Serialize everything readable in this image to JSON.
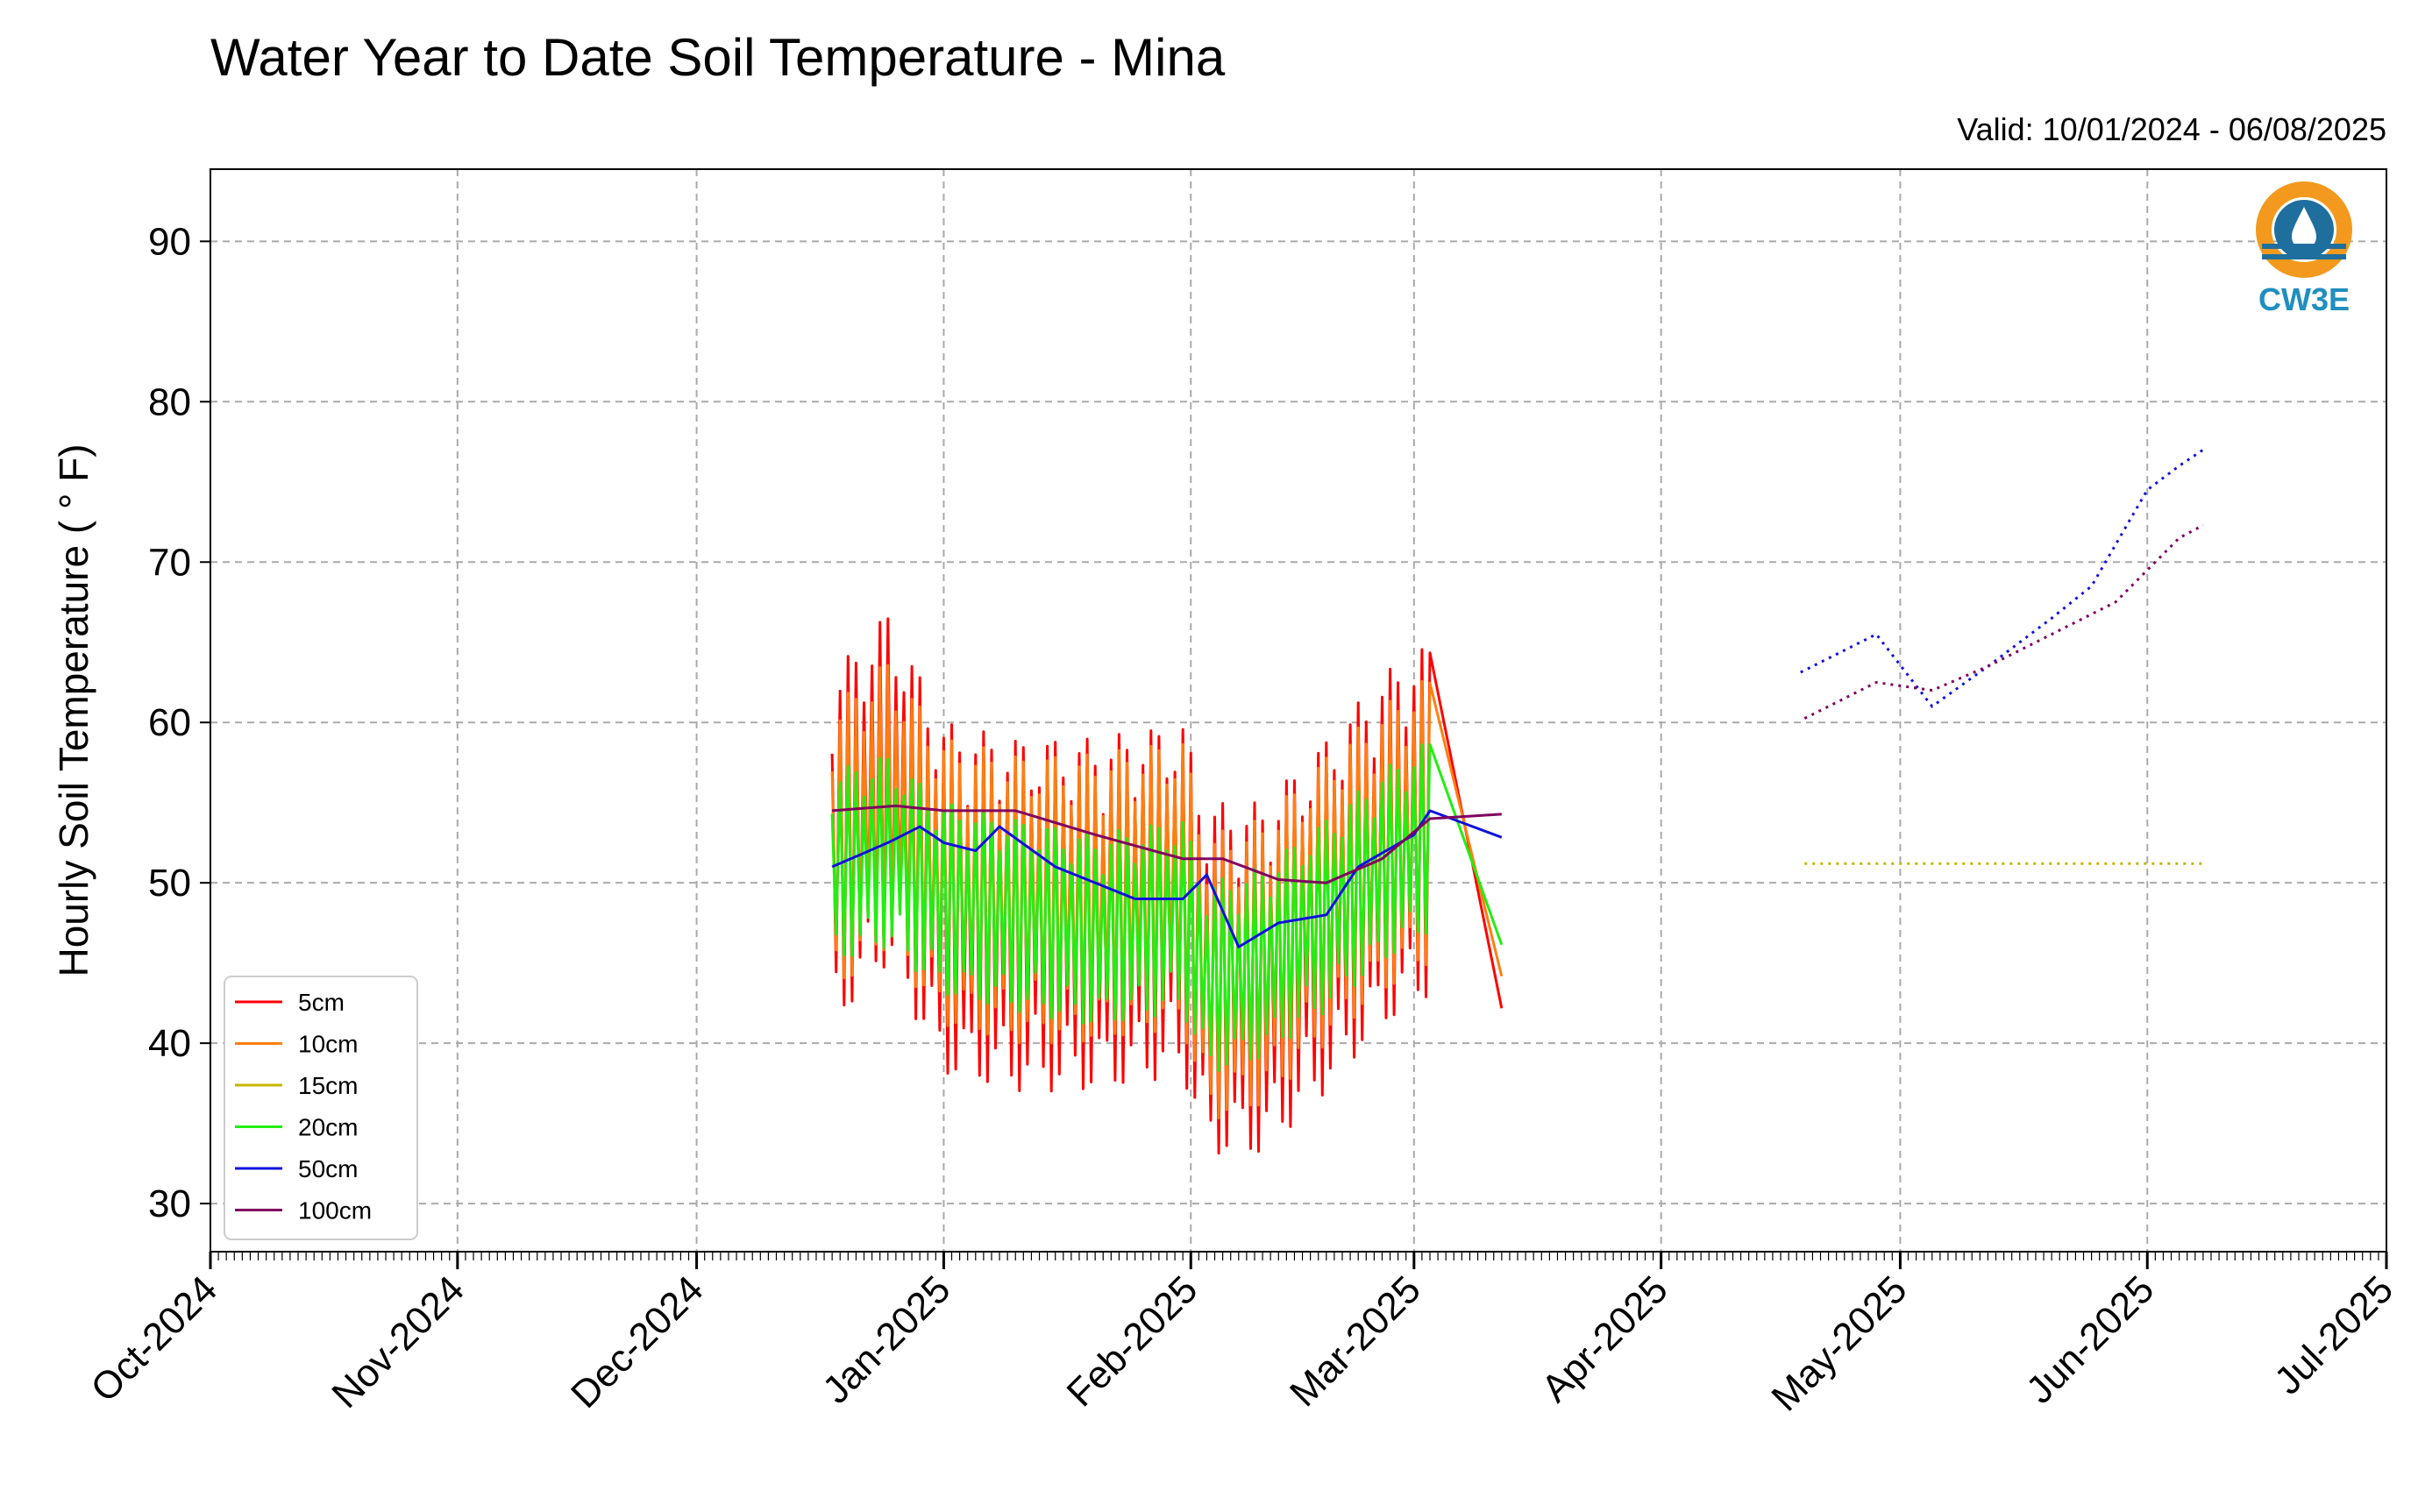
{
  "chart_data": {
    "type": "line",
    "title": "Water Year to Date Soil Temperature - Mina",
    "subtitle": "Valid: 10/01/2024 - 06/08/2025",
    "xlabel": "",
    "ylabel": "Hourly Soil Temperature ( ° F)",
    "xlim": [
      "2024-10-01",
      "2025-07-01"
    ],
    "ylim": [
      27,
      94.5
    ],
    "y_ticks": [
      30,
      40,
      50,
      60,
      70,
      80,
      90
    ],
    "x_ticks": [
      {
        "date": "2024-10-01",
        "label": "Oct-2024"
      },
      {
        "date": "2024-11-01",
        "label": "Nov-2024"
      },
      {
        "date": "2024-12-01",
        "label": "Dec-2024"
      },
      {
        "date": "2025-01-01",
        "label": "Jan-2025"
      },
      {
        "date": "2025-02-01",
        "label": "Feb-2025"
      },
      {
        "date": "2025-03-01",
        "label": "Mar-2025"
      },
      {
        "date": "2025-04-01",
        "label": "Apr-2025"
      },
      {
        "date": "2025-05-01",
        "label": "May-2025"
      },
      {
        "date": "2025-06-01",
        "label": "Jun-2025"
      },
      {
        "date": "2025-07-01",
        "label": "Jul-2025"
      }
    ],
    "grid": true,
    "legend_position": "bottom-left",
    "logo_text": "CW3E",
    "colors": {
      "logo_blue": "#1f6f9e",
      "logo_orange": "#f39a1e"
    },
    "series": [
      {
        "name": "5cm",
        "color": "#ff0000",
        "points": [
          [
            "2024-12-18",
            52
          ],
          [
            "2024-12-25",
            56
          ],
          [
            "2025-01-01",
            49
          ],
          [
            "2025-01-10",
            48
          ],
          [
            "2025-01-20",
            48
          ],
          [
            "2025-01-31",
            49
          ],
          [
            "2025-02-03",
            44
          ],
          [
            "2025-02-10",
            44
          ],
          [
            "2025-02-18",
            48
          ],
          [
            "2025-02-25",
            52
          ],
          [
            "2025-03-03",
            54
          ],
          [
            "2025-03-10",
            56
          ],
          [
            "2025-03-13",
            49
          ],
          [
            "2025-03-17",
            48.7
          ],
          [
            "2025-04-01",
            48.7
          ],
          [
            "2025-04-18",
            48.7
          ],
          [
            "2025-06-08",
            48.7
          ]
        ]
      },
      {
        "name": "10cm",
        "color": "#ff7f0e",
        "points": [
          [
            "2024-12-18",
            52
          ],
          [
            "2024-12-25",
            55
          ],
          [
            "2025-01-01",
            50
          ],
          [
            "2025-01-10",
            49
          ],
          [
            "2025-01-20",
            49
          ],
          [
            "2025-01-31",
            50
          ],
          [
            "2025-02-03",
            44
          ],
          [
            "2025-02-10",
            45
          ],
          [
            "2025-02-18",
            49
          ],
          [
            "2025-02-25",
            52
          ],
          [
            "2025-03-03",
            54
          ],
          [
            "2025-03-10",
            55
          ],
          [
            "2025-03-13",
            50
          ],
          [
            "2025-03-17",
            49.5
          ],
          [
            "2025-04-18",
            49.5
          ],
          [
            "2025-06-08",
            49.5
          ]
        ]
      },
      {
        "name": "15cm",
        "color": "#c8b400",
        "points": [
          [
            "2025-03-17",
            51.2
          ],
          [
            "2025-04-18",
            51.2
          ],
          [
            "2025-06-08",
            51.2
          ]
        ]
      },
      {
        "name": "20cm",
        "color": "#22ee11",
        "points": [
          [
            "2024-12-18",
            51
          ],
          [
            "2024-12-25",
            52
          ],
          [
            "2025-01-01",
            49
          ],
          [
            "2025-01-10",
            48
          ],
          [
            "2025-01-20",
            47
          ],
          [
            "2025-01-31",
            48
          ],
          [
            "2025-02-03",
            44
          ],
          [
            "2025-02-10",
            45
          ],
          [
            "2025-02-18",
            48
          ],
          [
            "2025-02-25",
            51
          ],
          [
            "2025-03-03",
            53
          ],
          [
            "2025-03-10",
            52
          ],
          [
            "2025-03-17",
            49
          ],
          [
            "2025-03-25",
            55
          ],
          [
            "2025-04-01",
            52
          ],
          [
            "2025-04-08",
            58
          ],
          [
            "2025-04-15",
            64
          ],
          [
            "2025-04-25",
            70
          ],
          [
            "2025-05-10",
            74
          ],
          [
            "2025-05-25",
            79
          ],
          [
            "2025-06-05",
            82
          ],
          [
            "2025-06-08",
            86
          ]
        ]
      },
      {
        "name": "50cm",
        "color": "#1010e0",
        "points": [
          [
            "2024-12-18",
            51
          ],
          [
            "2024-12-25",
            52.5
          ],
          [
            "2024-12-29",
            53.5
          ],
          [
            "2025-01-01",
            52.5
          ],
          [
            "2025-01-05",
            52
          ],
          [
            "2025-01-08",
            53.5
          ],
          [
            "2025-01-15",
            51
          ],
          [
            "2025-01-25",
            49
          ],
          [
            "2025-01-31",
            49
          ],
          [
            "2025-02-03",
            50.5
          ],
          [
            "2025-02-07",
            46
          ],
          [
            "2025-02-12",
            47.5
          ],
          [
            "2025-02-18",
            48
          ],
          [
            "2025-02-22",
            51
          ],
          [
            "2025-03-01",
            53
          ],
          [
            "2025-03-03",
            54.5
          ],
          [
            "2025-03-10",
            54.5
          ],
          [
            "2025-03-13",
            52
          ],
          [
            "2025-03-17",
            51
          ],
          [
            "2025-03-25",
            51.5
          ],
          [
            "2025-03-28",
            58
          ],
          [
            "2025-04-02",
            53
          ],
          [
            "2025-04-06",
            55
          ],
          [
            "2025-04-13",
            57
          ],
          [
            "2025-04-18",
            63
          ],
          [
            "2025-04-28",
            65.5
          ],
          [
            "2025-05-05",
            61
          ],
          [
            "2025-05-12",
            63.5
          ],
          [
            "2025-05-20",
            66.5
          ],
          [
            "2025-05-25",
            68.5
          ],
          [
            "2025-06-01",
            74.5
          ],
          [
            "2025-06-05",
            76
          ],
          [
            "2025-06-08",
            77
          ]
        ]
      },
      {
        "name": "100cm",
        "color": "#800060",
        "points": [
          [
            "2024-12-18",
            54.5
          ],
          [
            "2024-12-26",
            54.8
          ],
          [
            "2025-01-01",
            54.5
          ],
          [
            "2025-01-10",
            54.5
          ],
          [
            "2025-01-20",
            53
          ],
          [
            "2025-01-31",
            51.5
          ],
          [
            "2025-02-05",
            51.5
          ],
          [
            "2025-02-12",
            50.2
          ],
          [
            "2025-02-18",
            50
          ],
          [
            "2025-02-25",
            51.5
          ],
          [
            "2025-03-03",
            54
          ],
          [
            "2025-03-10",
            54.8
          ],
          [
            "2025-03-15",
            53.5
          ],
          [
            "2025-03-22",
            53
          ],
          [
            "2025-03-28",
            55.5
          ],
          [
            "2025-04-05",
            55
          ],
          [
            "2025-04-12",
            57
          ],
          [
            "2025-04-18",
            60
          ],
          [
            "2025-04-28",
            62.5
          ],
          [
            "2025-05-05",
            62
          ],
          [
            "2025-05-12",
            63.5
          ],
          [
            "2025-05-20",
            65.5
          ],
          [
            "2025-05-28",
            67.5
          ],
          [
            "2025-06-05",
            71.5
          ],
          [
            "2025-06-08",
            72.3
          ]
        ]
      }
    ]
  }
}
